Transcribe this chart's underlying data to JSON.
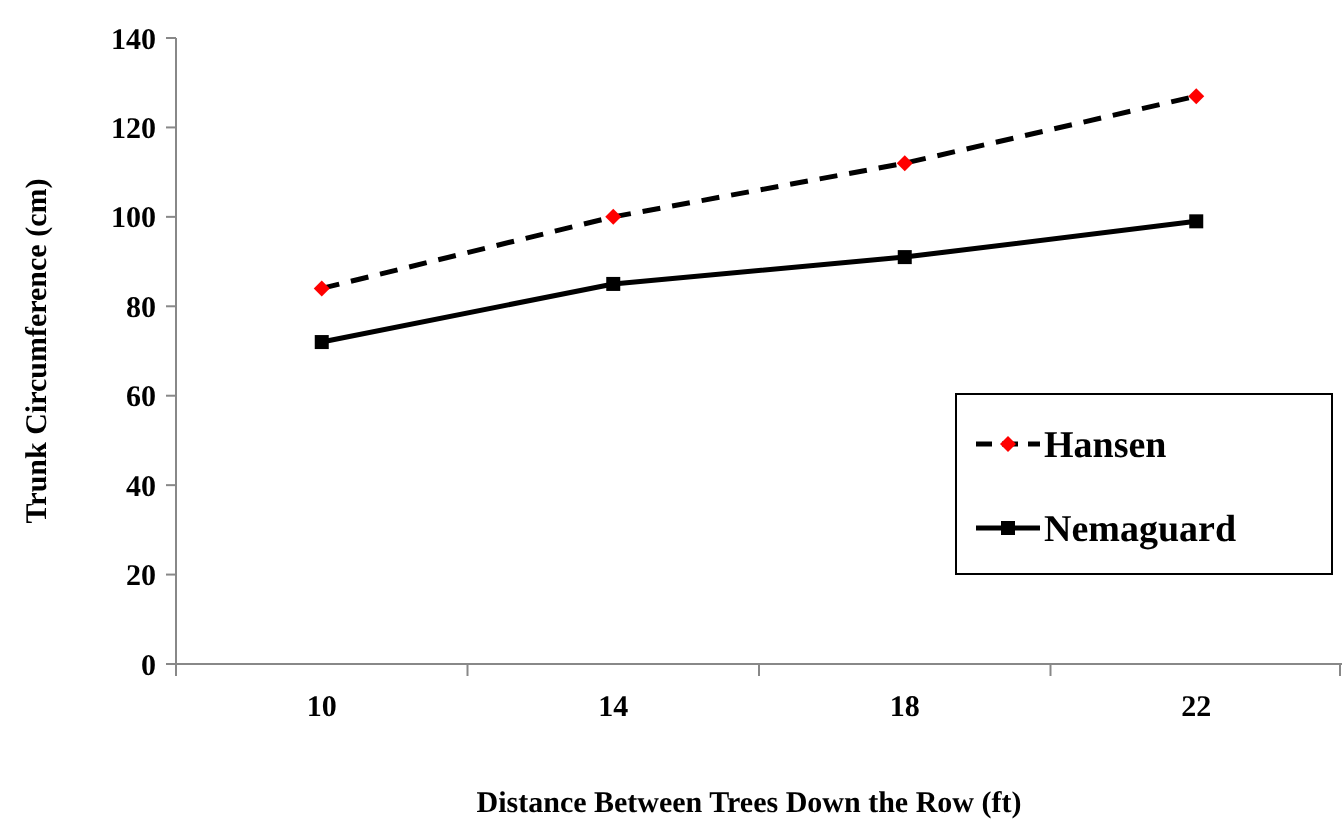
{
  "chart_data": {
    "type": "line",
    "xlabel": "Distance Between Trees Down the Row (ft)",
    "ylabel": "Trunk Circumference (cm)",
    "categories": [
      "10",
      "14",
      "18",
      "22"
    ],
    "series": [
      {
        "name": "Hansen",
        "color": "#000000",
        "colors": [
          "#ff0000",
          "#ff0000",
          "#ff0000",
          "#ff0000"
        ],
        "marker": "diamond",
        "line_style": "dashed",
        "values": [
          84,
          100,
          112,
          127
        ]
      },
      {
        "name": "Nemaguard",
        "color": "#000000",
        "marker": "square",
        "line_style": "solid",
        "values": [
          72,
          85,
          91,
          99
        ]
      }
    ],
    "ylim": [
      0,
      140
    ],
    "yticks": [
      0,
      20,
      40,
      60,
      80,
      100,
      120,
      140
    ],
    "grid": false,
    "legend": "bottom right"
  }
}
